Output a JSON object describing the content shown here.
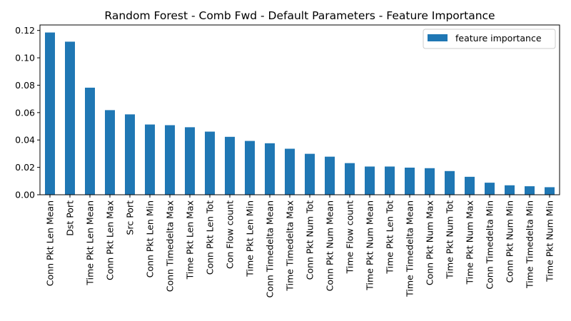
{
  "chart_data": {
    "type": "bar",
    "title": "Random Forest - Comb Fwd - Default Parameters - Feature Importance",
    "xlabel": "",
    "ylabel": "",
    "categories": [
      "Conn Pkt Len Mean",
      "Dst Port",
      "Time Pkt Len Mean",
      "Conn Pkt Len Max",
      "Src Port",
      "Conn Pkt Len Min",
      "Conn Timedelta Max",
      "Time Pkt Len Max",
      "Conn Pkt Len Tot",
      "Con Flow count",
      "Time Pkt Len Min",
      "Conn Timedelta Mean",
      "Time Timedelta Max",
      "Conn Pkt Num Tot",
      "Conn Pkt Num Mean",
      "Time Flow count",
      "Time Pkt Num Mean",
      "Time Pkt Len Tot",
      "Time Timedelta Mean",
      "Conn Pkt Num Max",
      "Time Pkt Num Tot",
      "Time Pkt Num Max",
      "Conn Timedelta Min",
      "Conn Pkt Num Min",
      "Time Timedelta Min",
      "Time Pkt Num Min"
    ],
    "series": [
      {
        "name": "feature importance",
        "color": "#1f77b4",
        "values": [
          0.1185,
          0.1118,
          0.0782,
          0.0618,
          0.0587,
          0.0513,
          0.0508,
          0.0493,
          0.0461,
          0.0423,
          0.0393,
          0.0376,
          0.0336,
          0.0299,
          0.0278,
          0.0231,
          0.0206,
          0.0206,
          0.0198,
          0.0194,
          0.0173,
          0.0131,
          0.0088,
          0.0069,
          0.0062,
          0.0055
        ]
      }
    ],
    "ylim": [
      0,
      0.124
    ],
    "yticks": [
      "0.00",
      "0.02",
      "0.04",
      "0.06",
      "0.08",
      "0.10",
      "0.12"
    ],
    "yticks_values": [
      0,
      0.02,
      0.04,
      0.06,
      0.08,
      0.1,
      0.12
    ],
    "legend_position": "top-right",
    "grid": false
  }
}
